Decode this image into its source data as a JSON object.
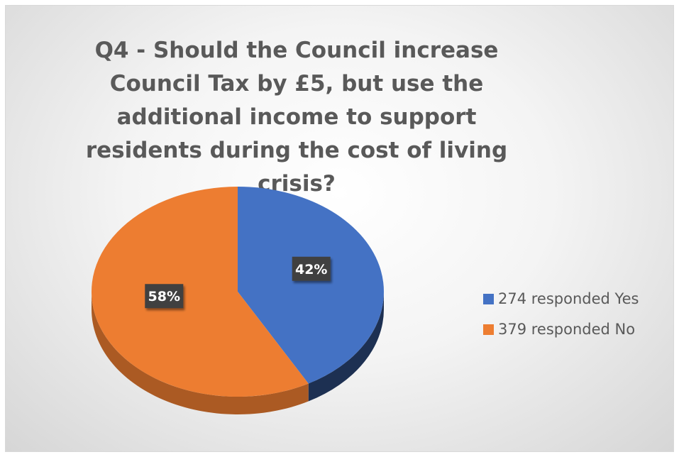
{
  "chart_data": {
    "type": "pie",
    "title": "Q4 - Should the Council increase Council Tax by £5, but use the additional income to support residents during the cost of living crisis?",
    "categories": [
      "274 responded Yes",
      "379 responded No"
    ],
    "values": [
      274,
      379
    ],
    "data_labels": [
      "42%",
      "58%"
    ],
    "colors": [
      "#4472c4",
      "#ed7d31"
    ],
    "legend_position": "right",
    "style": "3d"
  }
}
